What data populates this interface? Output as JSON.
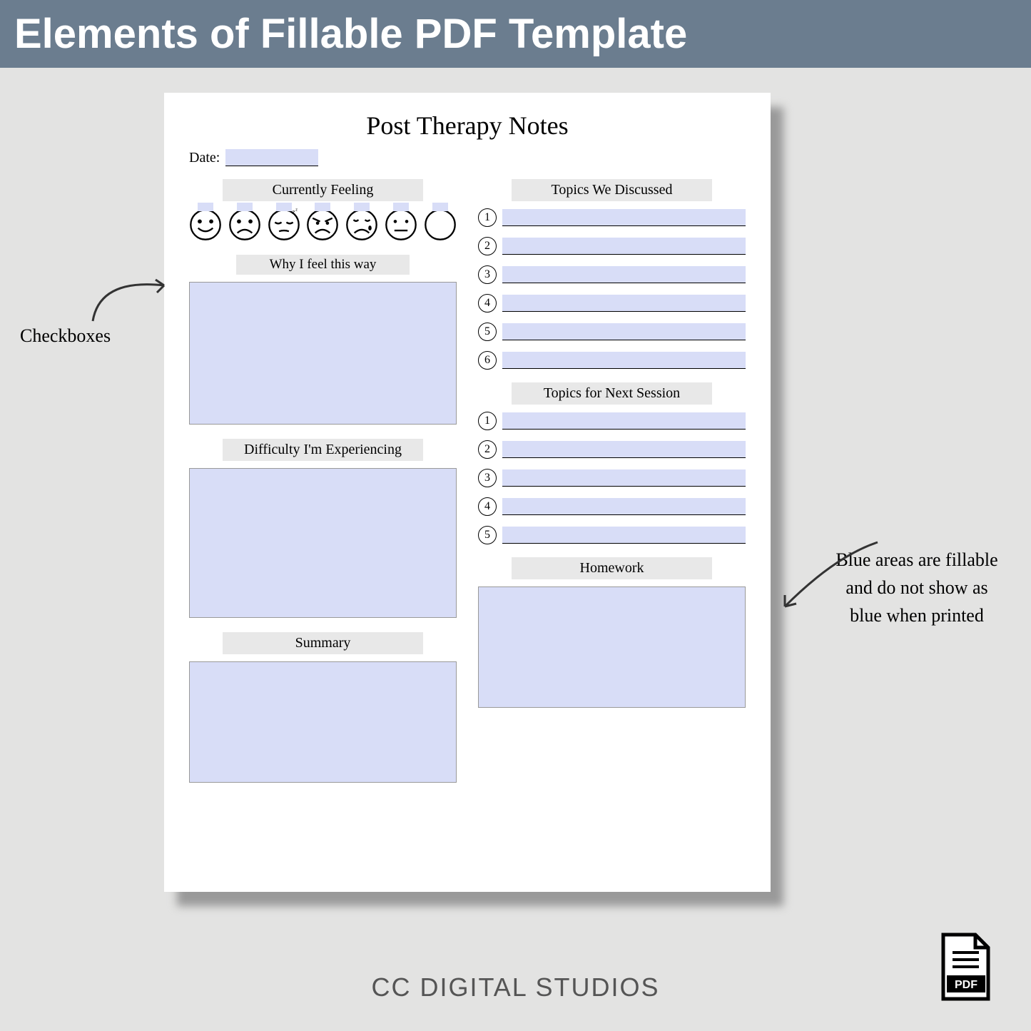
{
  "banner_title": "Elements of Fillable PDF Template",
  "page_title": "Post Therapy Notes",
  "date_label": "Date:",
  "sections": {
    "feeling": "Currently Feeling",
    "why": "Why I feel this way",
    "difficulty": "Difficulty I'm Experiencing",
    "summary": "Summary",
    "topics_discussed": "Topics We Discussed",
    "topics_next": "Topics for Next Session",
    "homework": "Homework"
  },
  "topics_discussed_numbers": [
    "1",
    "2",
    "3",
    "4",
    "5",
    "6"
  ],
  "topics_next_numbers": [
    "1",
    "2",
    "3",
    "4",
    "5"
  ],
  "emoji_faces": [
    "happy",
    "sad",
    "sleepy",
    "angry",
    "crying",
    "neutral",
    "blank"
  ],
  "annotations": {
    "checkboxes": "Checkboxes",
    "fillable": "Blue areas are fillable and do not show as blue when printed"
  },
  "footer_brand": "CC DIGITAL STUDIOS",
  "pdf_label": "PDF",
  "colors": {
    "banner_bg": "#6b7d8f",
    "page_bg": "#ffffff",
    "body_bg": "#e3e3e2",
    "fillable": "#d8ddf7",
    "section_label_bg": "#e8e8e8"
  }
}
